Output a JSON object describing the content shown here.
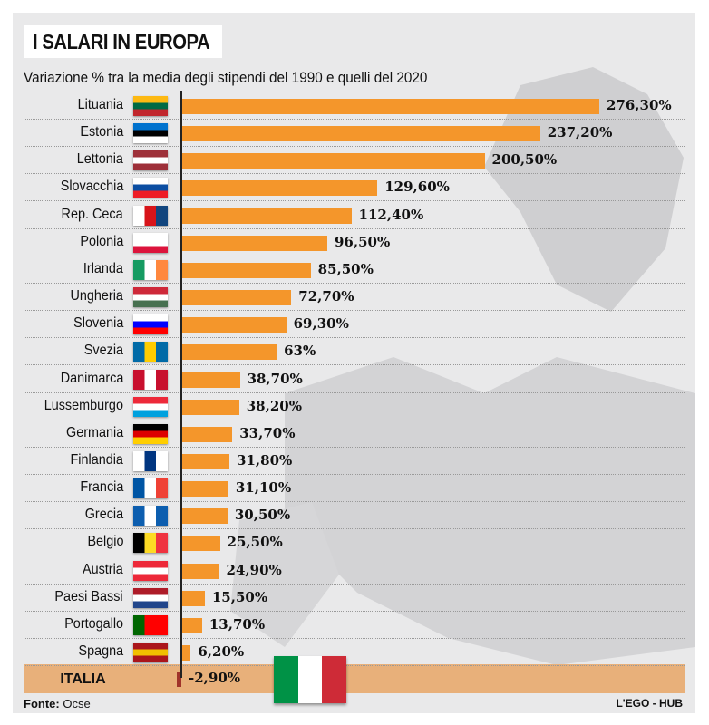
{
  "title": "I SALARI IN EUROPA",
  "source_label": "Fonte:",
  "source": "Ocse",
  "credit": "L'EGO - HUB",
  "colors": {
    "bar": "#f4962b",
    "negative_bar": "#a0332a",
    "highlight_band": "#e8b07a",
    "background": "#e9e9ea"
  },
  "chart_data": {
    "type": "bar",
    "orientation": "horizontal",
    "title": "I SALARI IN EUROPA",
    "subtitle": "Variazione % tra la media degli stipendi del 1990 e quelli del  2020",
    "categories": [
      "Lituania",
      "Estonia",
      "Lettonia",
      "Slovacchia",
      "Rep. Ceca",
      "Polonia",
      "Irlanda",
      "Ungheria",
      "Slovenia",
      "Svezia",
      "Danimarca",
      "Lussemburgo",
      "Germania",
      "Finlandia",
      "Francia",
      "Grecia",
      "Belgio",
      "Austria",
      "Paesi Bassi",
      "Portogallo",
      "Spagna",
      "ITALIA"
    ],
    "values": [
      276.3,
      237.2,
      200.5,
      129.6,
      112.4,
      96.5,
      85.5,
      72.7,
      69.3,
      63,
      38.7,
      38.2,
      33.7,
      31.8,
      31.1,
      30.5,
      25.5,
      24.9,
      15.5,
      13.7,
      6.2,
      -2.9
    ],
    "labels": [
      "276,30%",
      "237,20%",
      "200,50%",
      "129,60%",
      "112,40%",
      "96,50%",
      "85,50%",
      "72,70%",
      "69,30%",
      "63%",
      "38,70%",
      "38,20%",
      "33,70%",
      "31,80%",
      "31,10%",
      "30,50%",
      "25,50%",
      "24,90%",
      "15,50%",
      "13,70%",
      "6,20%",
      "-2,90%"
    ],
    "highlight": "ITALIA",
    "xlabel": "",
    "ylabel": ""
  },
  "flags": [
    [
      "#fdb913",
      "#006a44",
      "#c1272d"
    ],
    [
      "#0072ce",
      "#000000",
      "#ffffff"
    ],
    [
      "#9e3039",
      "#ffffff",
      "#9e3039"
    ],
    [
      "#ffffff",
      "#0b4ea2",
      "#ee1c25"
    ],
    [
      "#ffffff",
      "#d7141a",
      "#11457e"
    ],
    [
      "#ffffff",
      "#ffffff",
      "#dc143c"
    ],
    [
      "#169b62",
      "#ffffff",
      "#ff883e"
    ],
    [
      "#ce2939",
      "#ffffff",
      "#477050"
    ],
    [
      "#ffffff",
      "#0000ff",
      "#ff0000"
    ],
    [
      "#006aa7",
      "#fecc00",
      "#006aa7"
    ],
    [
      "#c8102e",
      "#ffffff",
      "#c8102e"
    ],
    [
      "#ed2939",
      "#ffffff",
      "#00a1de"
    ],
    [
      "#000000",
      "#dd0000",
      "#ffce00"
    ],
    [
      "#ffffff",
      "#003580",
      "#ffffff"
    ],
    [
      "#0055a4",
      "#ffffff",
      "#ef4135"
    ],
    [
      "#0d5eaf",
      "#ffffff",
      "#0d5eaf"
    ],
    [
      "#000000",
      "#fdda24",
      "#ef3340"
    ],
    [
      "#ed2939",
      "#ffffff",
      "#ed2939"
    ],
    [
      "#ae1c28",
      "#ffffff",
      "#21468b"
    ],
    [
      "#006600",
      "#ff0000",
      "#ff0000"
    ],
    [
      "#aa151b",
      "#f1bf00",
      "#aa151b"
    ]
  ],
  "italy_flag": [
    "#009246",
    "#ffffff",
    "#ce2b37"
  ]
}
